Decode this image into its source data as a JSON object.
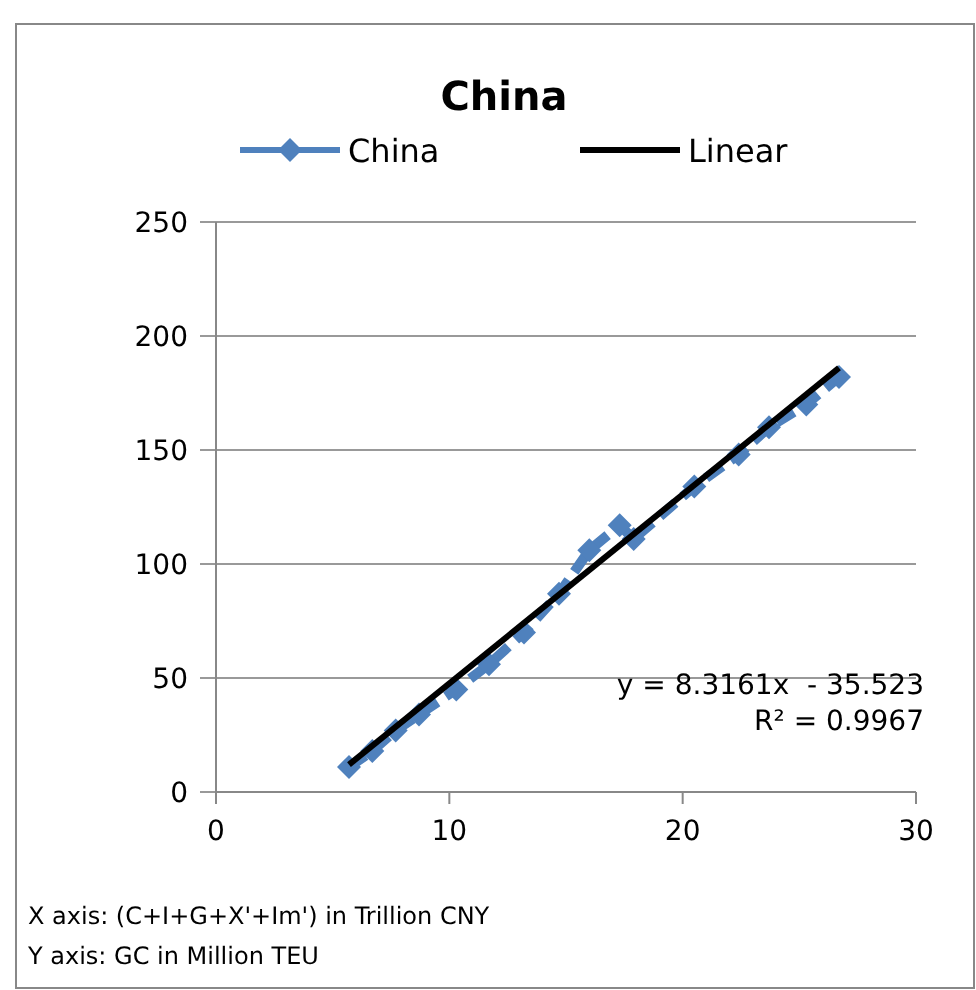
{
  "chart_data": {
    "type": "line",
    "title": "China",
    "series": [
      {
        "name": "China",
        "color": "#4f81bd",
        "line_style": "dashed",
        "marker": "diamond",
        "x": [
          5.7,
          6.7,
          7.7,
          8.7,
          10.3,
          11.7,
          13.2,
          14.7,
          16,
          17.3,
          17.9,
          20.5,
          22.4,
          23.7,
          25.3,
          26.7
        ],
        "values": [
          11,
          18,
          27,
          34,
          45,
          56,
          70,
          87,
          106,
          117,
          111,
          134,
          148,
          160,
          170,
          182
        ]
      },
      {
        "name": "Linear",
        "color": "#000000",
        "line_style": "solid",
        "marker": "none",
        "x": [
          5.7,
          26.7
        ],
        "values": [
          12,
          186
        ]
      }
    ],
    "xlim": [
      0,
      30
    ],
    "xticks": [
      0,
      10,
      20,
      30
    ],
    "ylim": [
      0,
      250
    ],
    "yticks": [
      0,
      50,
      100,
      150,
      200,
      250
    ],
    "grid": "y",
    "legend": "top",
    "annotations": [
      "y = 8.3161x  - 35.523",
      "R² = 0.9967",
      "X axis: (C+I+G+X'+Im') in Trillion CNY",
      "Y axis: GC in Million TEU"
    ]
  }
}
